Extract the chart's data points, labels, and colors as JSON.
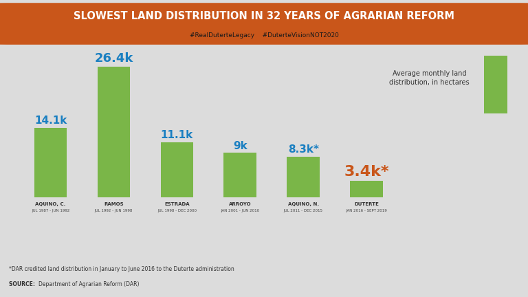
{
  "title": "SLOWEST LAND DISTRIBUTION IN 32 YEARS OF AGRARIAN REFORM",
  "subtitle": "#RealDuterteLegacy    #DuterteVisionNOT2020",
  "title_bg_color": "#c9561a",
  "bg_color": "#dcdcdc",
  "bar_color": "#7ab648",
  "categories": [
    "AQUINO, C.",
    "RAMOS",
    "ESTRADA",
    "ARROYO",
    "AQUINO, N.",
    "DUTERTE"
  ],
  "dates": [
    "JUL 1987 - JUN 1992",
    "JUL 1992 - JUN 1998",
    "JUL 1998 - DEC 2000",
    "JAN 2001 - JUN 2010",
    "JUL 2011 - DEC 2015",
    "JAN 2016 - SEPT 2019"
  ],
  "values": [
    14.1,
    26.4,
    11.1,
    9.0,
    8.3,
    3.4
  ],
  "labels": [
    "14.1k",
    "26.4k",
    "11.1k",
    "9k",
    "8.3k*",
    "3.4k*"
  ],
  "label_colors": [
    "#1a7fc1",
    "#1a7fc1",
    "#1a7fc1",
    "#1a7fc1",
    "#1a7fc1",
    "#c9561a"
  ],
  "label_fontsizes": [
    11,
    13,
    11,
    11,
    11,
    16
  ],
  "footnote": "*DAR credited land distribution in January to June 2016 to the Duterte administration",
  "source": "Department of Agrarian Reform (DAR)",
  "legend_text": "Average monthly land\ndistribution, in hectares",
  "strip_green_dark": "#3a7a20",
  "strip_green_mid": "#4e9a2a",
  "strip_green_light": "#5cb530",
  "ylim": [
    0,
    30
  ]
}
